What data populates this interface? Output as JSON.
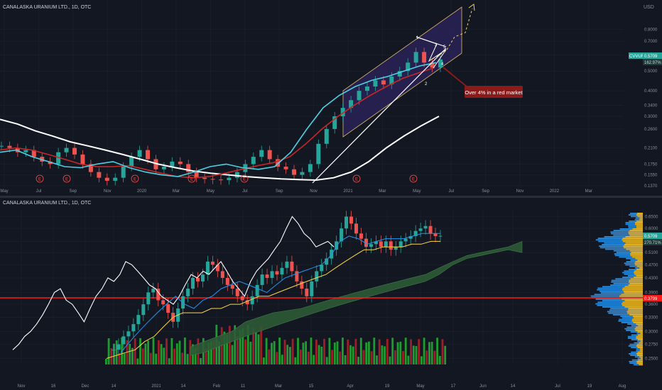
{
  "top_panel": {
    "title": "CANALASKA URANIUM LTD., 1D, OTC",
    "currency": "USD",
    "price_ticks": [
      "0.8000",
      "0.7000",
      "0.6000",
      "0.5000",
      "0.4000",
      "0.3400",
      "0.3000",
      "0.2600",
      "0.2100",
      "0.1750",
      "0.1550",
      "0.1370"
    ],
    "time_ticks": [
      "May",
      "Jul",
      "Sep",
      "Nov",
      "2020",
      "Mar",
      "May",
      "Jul",
      "Sep",
      "Nov",
      "2021",
      "Mar",
      "May",
      "Jul",
      "Sep",
      "Nov",
      "2022",
      "Mar"
    ],
    "ticker_label": "CVVUF",
    "last_price": "0.5709",
    "percent_label": "162.97%",
    "annotation": "Over 4% in a red market",
    "wave_labels": [
      "1",
      "2",
      "3",
      "4",
      "5"
    ],
    "earnings_marker": "E",
    "colors": {
      "up": "#26a69a",
      "down": "#ef5350",
      "channel_fill": "#2a2256",
      "channel_border": "#e0b96a",
      "ma_white": "#ffffff",
      "ma_red": "#c62828",
      "ma_cyan": "#4dd0e1",
      "annotation_bg": "#8b1a1a"
    }
  },
  "bottom_panel": {
    "title": "CANALASKA URANIUM LTD., 1D, OTC",
    "price_ticks": [
      "0.6500",
      "0.6000",
      "0.5500",
      "0.5100",
      "0.4700",
      "0.4300",
      "0.3900",
      "0.3600",
      "0.3300",
      "0.3000",
      "0.2750",
      "0.2500"
    ],
    "time_ticks": [
      "Nov",
      "16",
      "Dec",
      "14",
      "2021",
      "14",
      "Feb",
      "11",
      "Mar",
      "15",
      "Apr",
      "19",
      "May",
      "17",
      "Jun",
      "14",
      "Jul",
      "19",
      "Aug"
    ],
    "last_price": "0.5709",
    "percent_label": "270.71%",
    "red_level_label": "0.3799",
    "colors": {
      "up": "#26a69a",
      "down": "#ef5350",
      "cloud": "#2e5a36",
      "conversion": "#2196f3",
      "base": "#ffd740",
      "lagging": "#ffffff",
      "red_line": "#ff1a1a",
      "vol_up": "#1e9c2e",
      "vol_down": "#a01e2a",
      "vp_blue": "#2b8de0",
      "vp_yellow": "#f2c12e"
    }
  },
  "chart_data": [
    {
      "type": "candlestick",
      "title": "CANALASKA URANIUM LTD., 1D, OTC",
      "ylabel": "USD",
      "scale": "log",
      "ylim": [
        0.137,
        0.95
      ],
      "x_ticks": [
        "May",
        "Jul",
        "Sep",
        "Nov",
        "2020",
        "Mar",
        "May",
        "Jul",
        "Sep",
        "Nov",
        "2021",
        "Mar",
        "May",
        "Jul",
        "Sep",
        "Nov",
        "2022",
        "Mar"
      ],
      "series": [
        {
          "points": [
            0.215,
            0.21,
            0.2,
            0.205,
            0.19,
            0.18,
            0.175,
            0.2,
            0.21,
            0.195,
            0.175,
            0.16,
            0.15,
            0.145,
            0.15,
            0.17,
            0.19,
            0.205,
            0.185,
            0.165,
            0.17,
            0.18,
            0.175,
            0.16,
            0.15,
            0.148,
            0.147,
            0.146,
            0.15,
            0.16,
            0.175,
            0.19,
            0.205,
            0.185,
            0.17,
            0.165,
            0.155,
            0.16,
            0.175,
            0.22,
            0.26,
            0.3,
            0.33,
            0.36,
            0.4,
            0.42,
            0.45,
            0.43,
            0.47,
            0.5,
            0.55,
            0.62,
            0.55,
            0.52,
            0.57
          ]
        },
        {
          "points": [
            0.29,
            0.275,
            0.255,
            0.24,
            0.225,
            0.215,
            0.205,
            0.195,
            0.185,
            0.175,
            0.168,
            0.162,
            0.158,
            0.155,
            0.152,
            0.15,
            0.148,
            0.147,
            0.146,
            0.15,
            0.16,
            0.18,
            0.21,
            0.24,
            0.27,
            0.3
          ]
        },
        {
          "points": [
            0.205,
            0.21,
            0.205,
            0.195,
            0.185,
            0.175,
            0.17,
            0.17,
            0.172,
            0.165,
            0.158,
            0.152,
            0.15,
            0.152,
            0.158,
            0.165,
            0.172,
            0.178,
            0.19,
            0.22,
            0.26,
            0.3,
            0.34,
            0.38,
            0.42,
            0.46,
            0.49,
            0.52
          ]
        },
        {
          "points": [
            0.2,
            0.205,
            0.19,
            0.18,
            0.17,
            0.168,
            0.175,
            0.18,
            0.168,
            0.16,
            0.155,
            0.152,
            0.16,
            0.17,
            0.175,
            0.168,
            0.165,
            0.17,
            0.2,
            0.26,
            0.33,
            0.38,
            0.42,
            0.45,
            0.47,
            0.5,
            0.53,
            0.55
          ]
        }
      ],
      "annotations": [
        "Over 4% in a red market"
      ],
      "last_value": 0.5709
    },
    {
      "type": "candlestick",
      "title": "CANALASKA URANIUM LTD., 1D, OTC",
      "scale": "log",
      "ylim": [
        0.24,
        0.68
      ],
      "x_ticks": [
        "Nov",
        "16",
        "Dec",
        "14",
        "2021",
        "14",
        "Feb",
        "11",
        "Mar",
        "15",
        "Apr",
        "19",
        "May",
        "17",
        "Jun",
        "14",
        "Jul",
        "19",
        "Aug"
      ],
      "horizontal_line": 0.3799,
      "series": [
        {
          "points": [
            0.265,
            0.275,
            0.29,
            0.3,
            0.315,
            0.335,
            0.36,
            0.39,
            0.4,
            0.37,
            0.36,
            0.34,
            0.32,
            0.35,
            0.38,
            0.4,
            0.43,
            0.42,
            0.44,
            0.48,
            0.47,
            0.45,
            0.43,
            0.41,
            0.4,
            0.38,
            0.37,
            0.36,
            0.38,
            0.41,
            0.44,
            0.43,
            0.45,
            0.44,
            0.46,
            0.48,
            0.45,
            0.42,
            0.4,
            0.38,
            0.42,
            0.45,
            0.47,
            0.49,
            0.52,
            0.55,
            0.6,
            0.65,
            0.62,
            0.58,
            0.56,
            0.53,
            0.54,
            0.55,
            0.53,
            0.55,
            0.52,
            0.53,
            0.55,
            0.56,
            0.57,
            0.59,
            0.6,
            0.61,
            0.58,
            0.57,
            0.5709
          ]
        },
        {
          "points": [
            0.25,
            0.255,
            0.26,
            0.265,
            0.28,
            0.29,
            0.31,
            0.33,
            0.34,
            0.34,
            0.34,
            0.35,
            0.35,
            0.36,
            0.36,
            0.37,
            0.38,
            0.38,
            0.39,
            0.4,
            0.41,
            0.42,
            0.43,
            0.44,
            0.46,
            0.48,
            0.5,
            0.52,
            0.52,
            0.53,
            0.53,
            0.53,
            0.54,
            0.54,
            0.55,
            0.55
          ]
        },
        {
          "points": [
            0.26,
            0.28,
            0.3,
            0.32,
            0.34,
            0.36,
            0.38,
            0.36,
            0.35,
            0.37,
            0.38,
            0.4,
            0.41,
            0.42,
            0.41,
            0.4,
            0.39,
            0.41,
            0.43,
            0.44,
            0.45,
            0.46,
            0.47,
            0.5,
            0.55,
            0.57,
            0.56,
            0.54,
            0.55,
            0.56,
            0.56,
            0.56,
            0.57,
            0.58,
            0.58,
            0.58
          ]
        }
      ],
      "last_value": 0.5709
    }
  ]
}
